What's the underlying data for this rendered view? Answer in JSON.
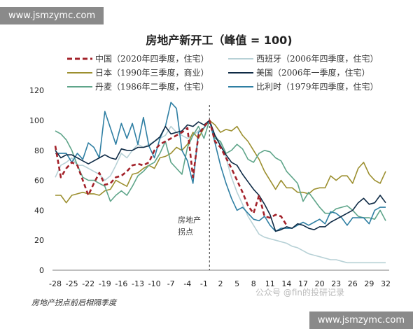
{
  "watermark_top": "www.jsmzymc.com",
  "watermark_bottom": "www.jsmzymc.com",
  "wechat_watermark": "公众号 @fin的投研记录",
  "chart_data": {
    "type": "line",
    "title": "房地产新开工（峰值 = 100)",
    "xlabel": "房地产拐点前后相隔季度",
    "ylabel": "",
    "xlim": [
      -28,
      32
    ],
    "ylim": [
      0,
      120
    ],
    "xticks": [
      -28,
      -25,
      -22,
      -19,
      -16,
      -13,
      -10,
      -7,
      -4,
      -1,
      2,
      5,
      8,
      11,
      14,
      17,
      20,
      23,
      26,
      29,
      32
    ],
    "yticks": [
      0,
      20,
      40,
      60,
      80,
      100,
      120
    ],
    "grid": false,
    "legend_position": "top",
    "annotation": {
      "x": 0,
      "text_line1": "房地产",
      "text_line2": "拐点"
    },
    "series": [
      {
        "name": "中国（2020年四季度，住宅）",
        "color": "#a3222a",
        "dashed": true,
        "x_start": -28,
        "values": [
          83,
          62,
          68,
          72,
          70,
          60,
          50,
          58,
          65,
          57,
          58,
          62,
          63,
          66,
          70,
          71,
          70,
          72,
          80,
          84,
          86,
          88,
          90,
          92,
          95,
          62,
          90,
          96,
          100,
          86,
          82,
          75,
          68,
          60,
          52,
          43,
          38,
          50,
          36,
          35,
          37,
          36,
          30
        ]
      },
      {
        "name": "西班牙（2006年四季度，住宅）",
        "color": "#b7d1d6",
        "dashed": false,
        "x_start": -28,
        "values": [
          62,
          70,
          72,
          75,
          70,
          70,
          68,
          66,
          64,
          60,
          63,
          70,
          78,
          75,
          80,
          84,
          82,
          84,
          86,
          88,
          90,
          96,
          92,
          90,
          88,
          90,
          93,
          95,
          100,
          90,
          85,
          75,
          62,
          52,
          44,
          36,
          30,
          24,
          22,
          21,
          20,
          19,
          18,
          16,
          15,
          13,
          11,
          10,
          9,
          8,
          7,
          7,
          6,
          5,
          5,
          5,
          5,
          5,
          5,
          5,
          5
        ]
      },
      {
        "name": "日本（1990年三季度，商业）",
        "color": "#9c8f2f",
        "dashed": false,
        "x_start": -28,
        "values": [
          50,
          50,
          45,
          50,
          51,
          52,
          51,
          51,
          50,
          53,
          54,
          60,
          58,
          56,
          64,
          65,
          68,
          70,
          68,
          75,
          76,
          78,
          82,
          80,
          84,
          92,
          88,
          95,
          100,
          97,
          92,
          94,
          93,
          96,
          90,
          86,
          80,
          74,
          66,
          60,
          54,
          60,
          55,
          55,
          52,
          52,
          51,
          54,
          55,
          55,
          63,
          60,
          63,
          63,
          58,
          68,
          72,
          64,
          60,
          58,
          66
        ]
      },
      {
        "name": "美国（2006年一季度，住宅）",
        "color": "#0e2a45",
        "dashed": false,
        "x_start": -28,
        "values": [
          80,
          75,
          77,
          77,
          75,
          73,
          71,
          73,
          75,
          77,
          75,
          74,
          81,
          80,
          80,
          82,
          82,
          83,
          86,
          89,
          96,
          91,
          92,
          93,
          97,
          96,
          99,
          97,
          100,
          90,
          83,
          77,
          72,
          70,
          64,
          59,
          54,
          50,
          44,
          37,
          26,
          27,
          29,
          28,
          31,
          30,
          28,
          27,
          29,
          29,
          32,
          34,
          36,
          38,
          40,
          45,
          48,
          44,
          45,
          50,
          45
        ]
      },
      {
        "name": "丹麦（1986年二季度，住宅）",
        "color": "#5fa58a",
        "dashed": false,
        "x_start": -28,
        "values": [
          93,
          91,
          87,
          80,
          70,
          62,
          60,
          60,
          58,
          56,
          46,
          50,
          53,
          50,
          56,
          63,
          66,
          70,
          72,
          78,
          86,
          72,
          68,
          64,
          82,
          90,
          96,
          88,
          100,
          88,
          86,
          78,
          80,
          84,
          81,
          74,
          72,
          78,
          80,
          79,
          75,
          73,
          66,
          62,
          58,
          46,
          52,
          47,
          42,
          38,
          38,
          41,
          42,
          43,
          40,
          36,
          35,
          35,
          34,
          40,
          33
        ]
      },
      {
        "name": "比利时（1979年四季度，住宅）",
        "color": "#2f7fa3",
        "dashed": false,
        "x_start": -28,
        "values": [
          78,
          78,
          78,
          72,
          78,
          74,
          85,
          82,
          75,
          106,
          95,
          84,
          98,
          88,
          98,
          84,
          102,
          83,
          75,
          88,
          96,
          112,
          108,
          80,
          73,
          58,
          92,
          95,
          100,
          85,
          70,
          58,
          48,
          40,
          42,
          38,
          34,
          33,
          36,
          30,
          26,
          28,
          28,
          28,
          30,
          32,
          30,
          32,
          34,
          31,
          39,
          38,
          35,
          30,
          35,
          35,
          35,
          31,
          40,
          42,
          42
        ]
      }
    ]
  }
}
